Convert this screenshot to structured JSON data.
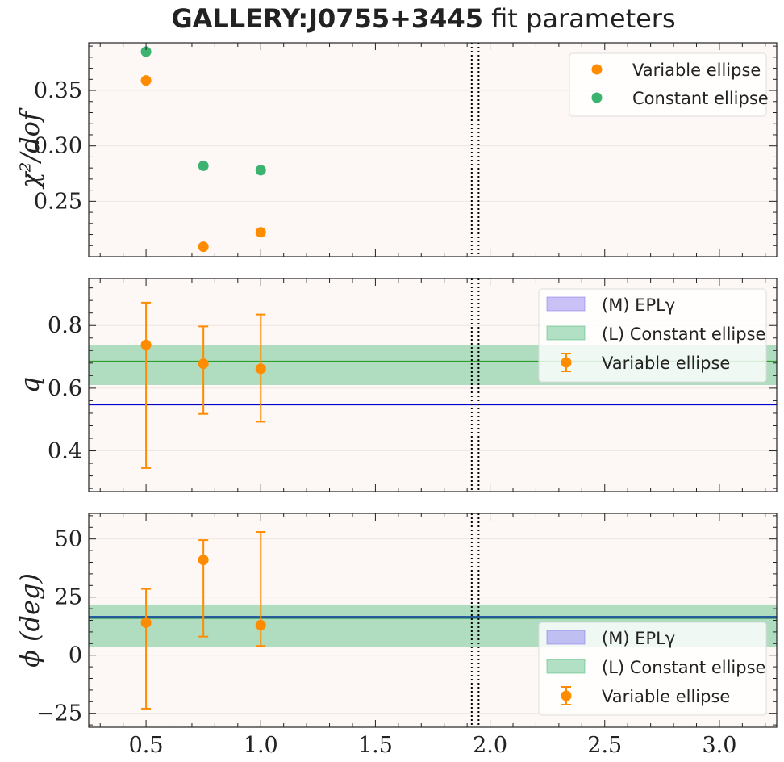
{
  "title": {
    "bold": "GALLERY:J0755+3445",
    "rest": " fit parameters"
  },
  "colors": {
    "variable": "#ff8c00",
    "constant": "#3cb371",
    "constant_band": "#3cb371",
    "epl": "#0000cd",
    "epl_band": "#7b68ee",
    "panel_bg": "#fdf8f6",
    "vline": "#000000"
  },
  "chart_data": [
    {
      "type": "scatter",
      "id": "chi2",
      "ylabel": "χ²/dof",
      "xlim": [
        0.25,
        3.25
      ],
      "ylim": [
        0.2,
        0.393
      ],
      "yticks": [
        0.25,
        0.3,
        0.35
      ],
      "ytick_labels": [
        "0.25",
        "0.30",
        "0.35"
      ],
      "vlines": [
        1.92,
        1.95
      ],
      "series": [
        {
          "name": "Variable ellipse",
          "color": "#ff8c00",
          "x": [
            0.5,
            0.75,
            1.0
          ],
          "y": [
            0.359,
            0.209,
            0.222
          ]
        },
        {
          "name": "Constant ellipse",
          "color": "#3cb371",
          "x": [
            0.5,
            0.75,
            1.0
          ],
          "y": [
            0.385,
            0.282,
            0.278
          ]
        }
      ],
      "legend": "top-right"
    },
    {
      "type": "scatter",
      "id": "q",
      "ylabel": "q",
      "xlim": [
        0.25,
        3.25
      ],
      "ylim": [
        0.27,
        0.95
      ],
      "yticks": [
        0.4,
        0.6,
        0.8
      ],
      "ytick_labels": [
        "0.4",
        "0.6",
        "0.8"
      ],
      "vlines": [
        1.92,
        1.95
      ],
      "bands": [
        {
          "name": "(M) EPLγ",
          "center": 0.548,
          "low": 0.546,
          "high": 0.55,
          "line_color": "#0000cd",
          "fill": "#7b68ee"
        },
        {
          "name": "(L) Constant ellipse",
          "center": 0.685,
          "low": 0.61,
          "high": 0.737,
          "line_color": "#2e9e2e",
          "fill": "#3cb371"
        }
      ],
      "series": [
        {
          "name": "Variable ellipse",
          "color": "#ff8c00",
          "x": [
            0.5,
            0.75,
            1.0
          ],
          "y": [
            0.738,
            0.678,
            0.662
          ],
          "err_low": [
            0.345,
            0.518,
            0.493
          ],
          "err_high": [
            0.873,
            0.797,
            0.835
          ]
        }
      ],
      "legend_labels": [
        "(M) EPLγ",
        "(L) Constant ellipse",
        "Variable ellipse"
      ],
      "legend": "top-right"
    },
    {
      "type": "scatter",
      "id": "phi",
      "ylabel": "ϕ (deg)",
      "xlabel": "",
      "xlim": [
        0.25,
        3.25
      ],
      "ylim": [
        -31,
        61
      ],
      "yticks": [
        -25,
        0,
        25,
        50
      ],
      "ytick_labels": [
        "−25",
        "0",
        "25",
        "50"
      ],
      "xticks": [
        0.5,
        1.0,
        1.5,
        2.0,
        2.5,
        3.0
      ],
      "xtick_labels": [
        "0.5",
        "1.0",
        "1.5",
        "2.0",
        "2.5",
        "3.0"
      ],
      "vlines": [
        1.92,
        1.95
      ],
      "bands": [
        {
          "name": "(M) EPLγ",
          "center": 16.5,
          "low": 16.2,
          "high": 16.8,
          "line_color": "#0000cd",
          "fill": "#7b68ee"
        },
        {
          "name": "(L) Constant ellipse",
          "center": 16.0,
          "low": 3.5,
          "high": 21.8,
          "line_color": "#2e8b57",
          "fill": "#3cb371"
        }
      ],
      "series": [
        {
          "name": "Variable ellipse",
          "color": "#ff8c00",
          "x": [
            0.5,
            0.75,
            1.0
          ],
          "y": [
            14,
            41,
            13
          ],
          "err_low": [
            -23,
            8,
            4
          ],
          "err_high": [
            28.5,
            49.5,
            53
          ]
        }
      ],
      "legend_labels": [
        "(M) EPLγ",
        "(L) Constant ellipse",
        "Variable ellipse"
      ],
      "legend": "lower-right"
    }
  ]
}
